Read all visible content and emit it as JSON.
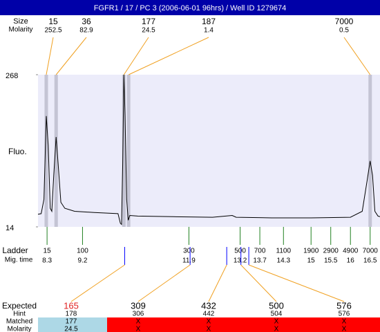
{
  "chart_data": {
    "type": "line",
    "title": "FGFR1 / 17 / PC 3 (2006-06-01 96hrs) / Well ID 1279674",
    "y_label": "Fluo.",
    "color": "#000000",
    "x": [
      8.07,
      8.15,
      8.22,
      8.28,
      8.33,
      8.38,
      8.42,
      8.47,
      8.53,
      8.58,
      8.65,
      8.75,
      9.0,
      9.5,
      10.1,
      10.16,
      10.19,
      10.22,
      10.25,
      10.28,
      10.32,
      10.36,
      10.4,
      10.6,
      11.5,
      12.5,
      13.0,
      13.1,
      14.0,
      15.0,
      16.0,
      16.3,
      16.42,
      16.5,
      16.56,
      16.62,
      16.7,
      16.75
    ],
    "values": [
      35,
      36,
      60,
      199,
      150,
      45,
      40,
      100,
      164,
      120,
      55,
      45,
      40,
      38,
      36,
      20,
      18,
      120,
      268,
      200,
      60,
      25,
      33,
      32,
      31,
      30,
      33,
      30,
      29,
      29,
      30,
      40,
      90,
      124,
      100,
      40,
      32,
      31
    ],
    "xlim": [
      8.07,
      16.75
    ],
    "ylim": [
      14,
      268
    ],
    "yticks": [
      14,
      268
    ],
    "peaks": {
      "size_label": "Size",
      "molarity_label": "Molarity",
      "sizes": [
        15,
        36,
        177,
        187,
        7000
      ],
      "molarity": [
        252.5,
        82.9,
        24.5,
        1.4,
        0.5
      ],
      "times": [
        8.28,
        8.53,
        10.25,
        10.37,
        16.5
      ]
    },
    "ladder": {
      "label": "Ladder",
      "time_label": "Mig. time",
      "sizes": [
        15,
        100,
        300,
        500,
        700,
        1100,
        1900,
        2900,
        4900,
        7000
      ],
      "times": [
        8.3,
        9.2,
        11.9,
        13.2,
        13.7,
        14.3,
        15,
        15.5,
        16,
        16.5
      ]
    },
    "expected": {
      "label": "Expected",
      "hint_label": "Hint",
      "matched_label": "Matched",
      "molarity_label": "Molarity",
      "values": [
        165,
        309,
        432,
        500,
        576
      ],
      "times": [
        10.27,
        11.93,
        12.86,
        13.22,
        13.42
      ],
      "hint": [
        178,
        306,
        442,
        504,
        576
      ],
      "matched": [
        177,
        "X",
        "X",
        "X",
        "X"
      ],
      "molarity": [
        24.5,
        "X",
        "X",
        "X",
        "X"
      ]
    }
  }
}
